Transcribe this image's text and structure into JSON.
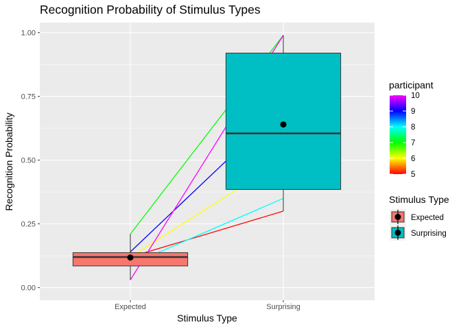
{
  "chart_data": {
    "type": "box",
    "title": "Recognition Probability of Stimulus Types",
    "xlabel": "Stimulus Type",
    "ylabel": "Recognition Probability",
    "categories": [
      "Expected",
      "Surprising"
    ],
    "ylim": [
      0.0,
      1.0
    ],
    "yticks": [
      {
        "value": 0.0,
        "label": "0.00"
      },
      {
        "value": 0.25,
        "label": "0.25"
      },
      {
        "value": 0.5,
        "label": "0.50"
      },
      {
        "value": 0.75,
        "label": "0.75"
      },
      {
        "value": 1.0,
        "label": "1.00"
      }
    ],
    "grid": true,
    "boxes": [
      {
        "category": "Expected",
        "min": 0.03,
        "q1": 0.085,
        "median": 0.12,
        "q3": 0.137,
        "max": 0.21,
        "mean": 0.118,
        "fill": "#F8766D"
      },
      {
        "category": "Surprising",
        "min": 0.3,
        "q1": 0.385,
        "median": 0.605,
        "q3": 0.92,
        "max": 0.99,
        "mean": 0.64,
        "fill": "#00BFC4"
      }
    ],
    "participants": [
      {
        "participant": 5,
        "color": "#FF0000",
        "values": [
          0.12,
          0.3
        ]
      },
      {
        "participant": 6,
        "color": "#FFFF00",
        "values": [
          0.12,
          0.5
        ]
      },
      {
        "participant": 7,
        "color": "#00FF00",
        "values": [
          0.21,
          0.99
        ]
      },
      {
        "participant": 8,
        "color": "#00FFFF",
        "values": [
          0.09,
          0.35
        ]
      },
      {
        "participant": 9,
        "color": "#0000FF",
        "values": [
          0.14,
          0.71
        ]
      },
      {
        "participant": 10,
        "color": "#FF00FF",
        "values": [
          0.03,
          0.99
        ]
      }
    ],
    "legend_position": "right",
    "legend_participant": {
      "title": "participant",
      "range": [
        5,
        10
      ],
      "ticks": [
        "10",
        "9",
        "8",
        "7",
        "6",
        "5"
      ],
      "colors": [
        "#FF0000",
        "#FFFF00",
        "#00FF00",
        "#00FFFF",
        "#0000FF",
        "#FF00FF"
      ]
    },
    "legend_stimulus": {
      "title": "Stimulus Type",
      "items": [
        {
          "label": "Expected",
          "color": "#F8766D"
        },
        {
          "label": "Surprising",
          "color": "#00BFC4"
        }
      ]
    }
  }
}
